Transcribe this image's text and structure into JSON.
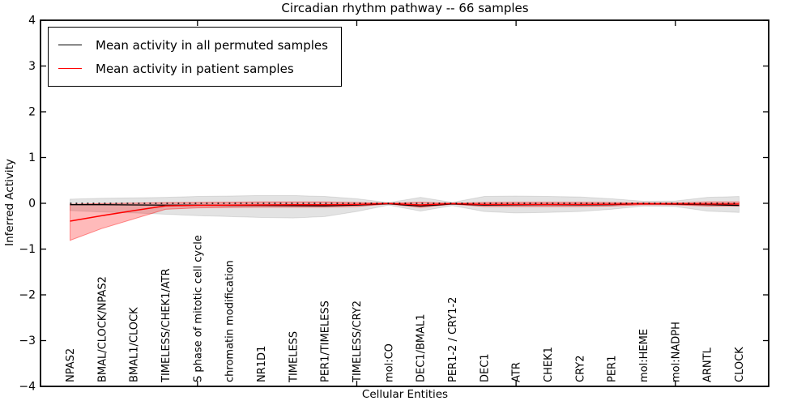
{
  "chart_data": {
    "type": "line",
    "title": "Circadian rhythm pathway -- 66 samples",
    "xlabel": "Cellular Entities",
    "ylabel": "Inferred Activity",
    "ylim": [
      -4,
      4
    ],
    "yticks": [
      4,
      3,
      2,
      1,
      0,
      -1,
      -2,
      -3,
      -4
    ],
    "xtick_mark_positions": [
      4,
      9,
      14,
      19
    ],
    "grid": false,
    "legend_position": "upper left",
    "categories": [
      "NPAS2",
      "BMAL/CLOCK/NPAS2",
      "BMAL1/CLOCK",
      "TIMELESS/CHEK1/ATR",
      "S phase of mitotic cell cycle",
      "chromatin modification",
      "NR1D1",
      "TIMELESS",
      "PER1/TIMELESS",
      "TIMELESS/CRY2",
      "mol:CO",
      "DEC1/BMAL1",
      "PER1-2 / CRY1-2",
      "DEC1",
      "ATR",
      "CHEK1",
      "CRY2",
      "PER1",
      "mol:HEME",
      "mol:NADPH",
      "ARNTL",
      "CLOCK"
    ],
    "reference_line": {
      "y": 0,
      "style": "dotted",
      "color": "#000000"
    },
    "series": [
      {
        "name": "Mean activity in all permuted samples",
        "color": "#000000",
        "band_fill": "rgba(0,0,0,0.11)",
        "band_edge": "rgba(0,0,0,0.10)",
        "values": [
          -0.03,
          -0.03,
          -0.035,
          -0.04,
          -0.04,
          -0.045,
          -0.045,
          -0.05,
          -0.055,
          -0.04,
          -0.01,
          -0.06,
          -0.015,
          -0.04,
          -0.035,
          -0.03,
          -0.035,
          -0.03,
          -0.01,
          -0.02,
          -0.03,
          -0.045
        ],
        "band_upper": [
          0.09,
          0.11,
          0.12,
          0.13,
          0.15,
          0.16,
          0.17,
          0.17,
          0.15,
          0.1,
          0.015,
          0.13,
          0.02,
          0.15,
          0.16,
          0.15,
          0.14,
          0.1,
          0.045,
          0.05,
          0.13,
          0.15
        ],
        "band_lower": [
          -0.16,
          -0.19,
          -0.21,
          -0.24,
          -0.27,
          -0.29,
          -0.31,
          -0.32,
          -0.29,
          -0.18,
          -0.04,
          -0.17,
          -0.05,
          -0.18,
          -0.21,
          -0.2,
          -0.18,
          -0.13,
          -0.06,
          -0.07,
          -0.17,
          -0.2
        ]
      },
      {
        "name": "Mean activity in patient samples",
        "color": "#ff0000",
        "band_fill": "rgba(255,0,0,0.27)",
        "band_edge": "rgba(255,0,0,0.40)",
        "values": [
          -0.39,
          -0.27,
          -0.16,
          -0.055,
          -0.045,
          -0.04,
          -0.035,
          -0.03,
          -0.03,
          -0.025,
          -0.005,
          -0.035,
          -0.007,
          -0.025,
          -0.025,
          -0.025,
          -0.025,
          -0.02,
          -0.01,
          -0.012,
          -0.015,
          -0.015
        ],
        "band_upper": [
          -0.02,
          -0.005,
          0.005,
          0.015,
          0.02,
          0.025,
          0.03,
          0.03,
          0.03,
          0.02,
          0.005,
          0.025,
          0.005,
          0.02,
          0.025,
          0.025,
          0.025,
          0.02,
          0.01,
          0.01,
          0.03,
          0.03
        ],
        "band_lower": [
          -0.81,
          -0.55,
          -0.34,
          -0.13,
          -0.1,
          -0.09,
          -0.085,
          -0.085,
          -0.085,
          -0.07,
          -0.015,
          -0.09,
          -0.02,
          -0.07,
          -0.07,
          -0.07,
          -0.07,
          -0.06,
          -0.03,
          -0.035,
          -0.06,
          -0.06
        ]
      }
    ]
  }
}
